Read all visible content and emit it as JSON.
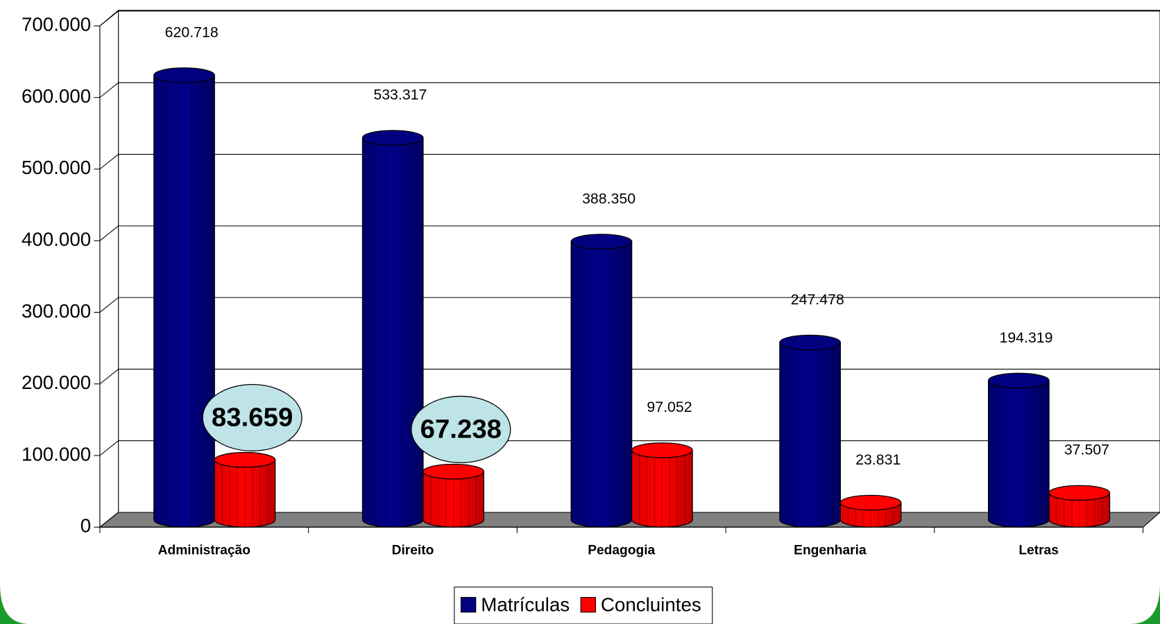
{
  "chart_data": {
    "type": "bar",
    "categories": [
      "Administração",
      "Direito",
      "Pedagogia",
      "Engenharia",
      "Letras"
    ],
    "series": [
      {
        "name": "Matrículas",
        "color": "#000080",
        "values": [
          620718,
          533317,
          388350,
          247478,
          194319
        ],
        "value_labels": [
          "620.718",
          "533.317",
          "388.350",
          "247.478",
          "194.319"
        ]
      },
      {
        "name": "Concluintes",
        "color": "#ff0000",
        "values": [
          83659,
          67238,
          97052,
          23831,
          37507
        ],
        "value_labels": [
          "83.659",
          "67.238",
          "97.052",
          "23.831",
          "37.507"
        ],
        "highlight_indices": [
          0,
          1
        ]
      }
    ],
    "ylim": [
      0,
      700000
    ],
    "yticks": [
      0,
      {
        "value": 100000,
        "label": "100.000"
      },
      {
        "value": 200000,
        "label": "200.000"
      },
      {
        "value": 300000,
        "label": "300.000"
      },
      {
        "value": 400000,
        "label": "400.000"
      },
      {
        "value": 500000,
        "label": "500.000"
      },
      {
        "value": 600000,
        "label": "600.000"
      },
      {
        "value": 700000,
        "label": "700.000"
      }
    ],
    "grid": true,
    "legend": "bottom"
  }
}
